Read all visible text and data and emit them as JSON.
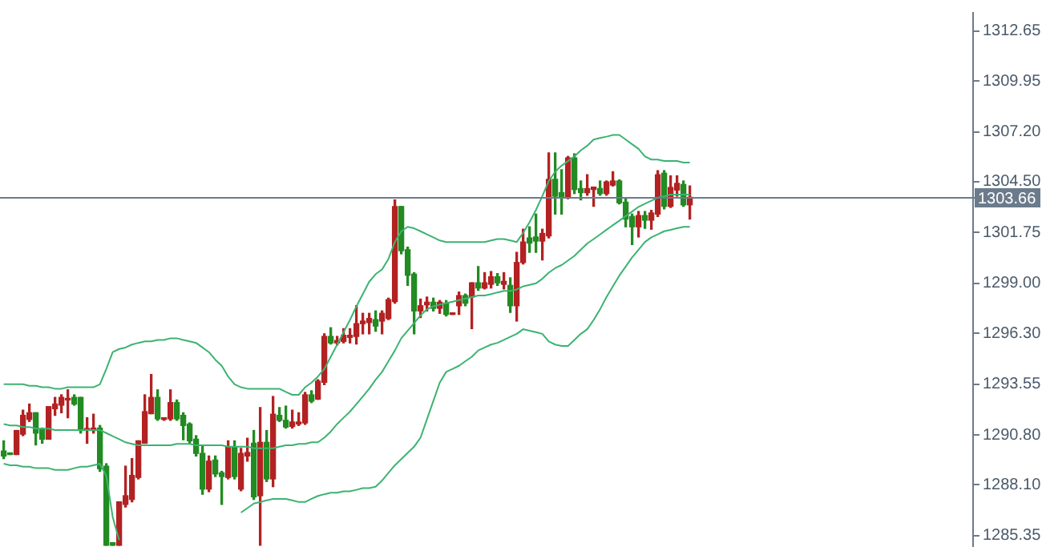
{
  "chart_data": {
    "type": "candlestick",
    "categories": [
      null,
      null,
      null,
      null,
      null,
      null,
      null,
      null,
      null,
      null,
      null,
      null,
      null,
      null,
      null,
      null,
      null,
      null,
      null,
      null,
      null,
      null,
      null,
      null,
      null,
      null,
      null,
      null,
      null,
      null,
      null,
      null,
      null,
      null,
      null,
      null,
      null,
      null,
      null,
      null,
      null,
      null,
      null,
      null,
      null,
      null,
      null,
      null,
      null,
      null,
      null,
      null,
      null,
      null,
      null,
      null,
      null,
      null,
      null,
      null,
      null,
      null,
      null,
      null,
      null,
      null,
      null,
      null,
      null,
      null,
      null,
      null,
      null,
      null,
      null,
      null,
      null,
      null,
      null,
      null,
      null,
      null,
      null,
      null,
      null,
      null,
      null,
      null,
      null,
      null,
      null,
      null,
      null,
      null,
      null,
      null,
      null,
      null,
      null,
      null,
      null,
      null,
      null,
      null,
      null,
      null,
      null,
      null
    ],
    "ohlc": [
      [
        1289.93,
        1290.48,
        1289.52,
        1289.66
      ],
      [
        1289.76,
        1289.76,
        1289.74,
        1289.74
      ],
      [
        1289.74,
        1291.04,
        1289.74,
        1291.04
      ],
      [
        1290.84,
        1292.14,
        1290.76,
        1291.86
      ],
      [
        1291.64,
        1292.47,
        1291.53,
        1292.0
      ],
      [
        1292.0,
        1292.0,
        1290.26,
        1290.9
      ],
      [
        1291.09,
        1291.17,
        1290.35,
        1290.57
      ],
      [
        1290.57,
        1292.33,
        1290.57,
        1292.33
      ],
      [
        1292.22,
        1292.83,
        1291.86,
        1292.47
      ],
      [
        1292.41,
        1292.97,
        1292.0,
        1292.83
      ],
      [
        1292.69,
        1293.24,
        1291.73,
        1292.77
      ],
      [
        1292.83,
        1292.97,
        1292.41,
        1292.47
      ],
      [
        1292.83,
        1292.83,
        1290.9,
        1291.04
      ],
      [
        1291.06,
        1291.73,
        1290.35,
        1291.12
      ],
      [
        1291.04,
        1291.92,
        1290.9,
        1291.17
      ],
      [
        1291.17,
        1291.31,
        1288.83,
        1288.97
      ],
      [
        1289.11,
        1289.24,
        1284.83,
        1284.83
      ],
      [
        1284.97,
        1284.97,
        1284.83,
        1284.83
      ],
      [
        1284.83,
        1287.18,
        1284.83,
        1287.18
      ],
      [
        1287.04,
        1289.11,
        1286.9,
        1287.51
      ],
      [
        1287.31,
        1289.52,
        1287.18,
        1288.61
      ],
      [
        1288.5,
        1290.48,
        1288.42,
        1290.48
      ],
      [
        1290.35,
        1292.97,
        1290.35,
        1292.06
      ],
      [
        1291.95,
        1294.07,
        1291.95,
        1292.83
      ],
      [
        1292.83,
        1293.24,
        1291.59,
        1291.67
      ],
      [
        1291.64,
        1291.73,
        1291.59,
        1291.73
      ],
      [
        1291.67,
        1293.24,
        1291.59,
        1292.55
      ],
      [
        1292.55,
        1292.69,
        1291.59,
        1291.67
      ],
      [
        1291.86,
        1292.0,
        1290.54,
        1291.31
      ],
      [
        1291.39,
        1291.45,
        1290.35,
        1290.48
      ],
      [
        1290.57,
        1290.76,
        1289.66,
        1289.8
      ],
      [
        1289.8,
        1290.21,
        1287.59,
        1287.87
      ],
      [
        1287.87,
        1289.66,
        1287.73,
        1289.38
      ],
      [
        1289.44,
        1289.66,
        1288.55,
        1288.69
      ],
      [
        1288.75,
        1288.83,
        1287.04,
        1288.55
      ],
      [
        1288.5,
        1290.48,
        1288.42,
        1290.15
      ],
      [
        1290.15,
        1290.48,
        1288.42,
        1288.55
      ],
      [
        1287.87,
        1290.07,
        1287.78,
        1289.8
      ],
      [
        1289.66,
        1290.62,
        1289.38,
        1289.85
      ],
      [
        1290.35,
        1291.04,
        1287.31,
        1287.45
      ],
      [
        1287.51,
        1292.28,
        1284.83,
        1290.4
      ],
      [
        1290.4,
        1291.04,
        1288.28,
        1288.42
      ],
      [
        1288.42,
        1292.88,
        1288.0,
        1291.92
      ],
      [
        1291.86,
        1292.28,
        1291.53,
        1291.59
      ],
      [
        1291.59,
        1292.36,
        1291.17,
        1291.23
      ],
      [
        1291.26,
        1292.14,
        1291.17,
        1291.5
      ],
      [
        1291.39,
        1292.0,
        1291.31,
        1291.5
      ],
      [
        1291.45,
        1293.1,
        1291.37,
        1292.97
      ],
      [
        1292.97,
        1293.19,
        1292.55,
        1292.63
      ],
      [
        1292.74,
        1293.79,
        1292.72,
        1293.71
      ],
      [
        1293.65,
        1296.27,
        1293.52,
        1296.13
      ],
      [
        1296.13,
        1296.6,
        1295.72,
        1295.78
      ],
      [
        1295.78,
        1296.13,
        1295.67,
        1295.91
      ],
      [
        1295.86,
        1296.55,
        1295.78,
        1296.19
      ],
      [
        1296.08,
        1296.55,
        1295.78,
        1296.19
      ],
      [
        1296.13,
        1297.79,
        1295.72,
        1296.82
      ],
      [
        1296.82,
        1297.38,
        1296.27,
        1296.96
      ],
      [
        1296.88,
        1297.38,
        1296.27,
        1297.1
      ],
      [
        1297.04,
        1297.51,
        1296.41,
        1296.69
      ],
      [
        1296.96,
        1297.51,
        1296.27,
        1297.38
      ],
      [
        1297.1,
        1298.2,
        1297.04,
        1298.12
      ],
      [
        1298.01,
        1303.52,
        1297.93,
        1303.16
      ],
      [
        1303.16,
        1303.16,
        1300.6,
        1300.77
      ],
      [
        1300.82,
        1300.96,
        1298.89,
        1299.44
      ],
      [
        1299.5,
        1299.58,
        1296.27,
        1297.51
      ],
      [
        1297.51,
        1298.15,
        1297.15,
        1297.79
      ],
      [
        1297.84,
        1298.26,
        1297.51,
        1297.98
      ],
      [
        1297.98,
        1298.2,
        1297.51,
        1297.65
      ],
      [
        1297.65,
        1298.07,
        1297.38,
        1297.98
      ],
      [
        1297.93,
        1298.07,
        1297.24,
        1297.32
      ],
      [
        1297.32,
        1297.38,
        1297.32,
        1297.38
      ],
      [
        1297.79,
        1298.53,
        1297.32,
        1298.34
      ],
      [
        1298.34,
        1298.42,
        1297.79,
        1297.93
      ],
      [
        1298.26,
        1299.03,
        1296.55,
        1299.03
      ],
      [
        1299.03,
        1299.91,
        1298.62,
        1298.75
      ],
      [
        1298.75,
        1299.58,
        1298.7,
        1299.03
      ],
      [
        1298.95,
        1299.64,
        1298.75,
        1299.36
      ],
      [
        1299.36,
        1299.53,
        1298.89,
        1299.03
      ],
      [
        1298.95,
        1299.58,
        1298.7,
        1299.11
      ],
      [
        1298.89,
        1299.3,
        1297.43,
        1297.79
      ],
      [
        1297.79,
        1300.68,
        1296.96,
        1300.13
      ],
      [
        1300.13,
        1301.93,
        1300.05,
        1301.24
      ],
      [
        1301.46,
        1302.06,
        1300.68,
        1301.18
      ],
      [
        1301.51,
        1302.75,
        1300.68,
        1301.29
      ],
      [
        1301.29,
        1301.93,
        1300.27,
        1301.7
      ],
      [
        1301.57,
        1306.06,
        1301.46,
        1304.63
      ],
      [
        1304.63,
        1306.06,
        1302.75,
        1303.72
      ],
      [
        1303.91,
        1305.15,
        1302.75,
        1303.66
      ],
      [
        1303.63,
        1305.87,
        1303.58,
        1305.79
      ],
      [
        1305.79,
        1306.01,
        1303.86,
        1304.08
      ],
      [
        1304.13,
        1304.54,
        1303.52,
        1303.91
      ],
      [
        1303.91,
        1304.88,
        1303.77,
        1304.13
      ],
      [
        1304.08,
        1304.21,
        1303.17,
        1304.21
      ],
      [
        1304.13,
        1304.54,
        1303.77,
        1303.86
      ],
      [
        1303.86,
        1304.54,
        1303.77,
        1304.49
      ],
      [
        1304.32,
        1305.04,
        1304.27,
        1304.54
      ],
      [
        1304.54,
        1304.6,
        1303.3,
        1303.36
      ],
      [
        1303.39,
        1303.58,
        1302.06,
        1302.48
      ],
      [
        1302.62,
        1302.75,
        1301.1,
        1302.06
      ],
      [
        1302.06,
        1302.89,
        1301.51,
        1302.67
      ],
      [
        1302.67,
        1302.89,
        1301.98,
        1302.42
      ],
      [
        1302.42,
        1302.95,
        1301.93,
        1302.81
      ],
      [
        1302.75,
        1305.1,
        1302.62,
        1304.88
      ],
      [
        1304.96,
        1305.1,
        1303.03,
        1303.17
      ],
      [
        1303.17,
        1304.82,
        1303.11,
        1304.19
      ],
      [
        1304.05,
        1304.82,
        1303.72,
        1304.41
      ],
      [
        1304.35,
        1304.54,
        1303.17,
        1303.25
      ],
      [
        1303.25,
        1304.27,
        1302.48,
        1303.66
      ]
    ],
    "colors": [
      "#228b22",
      "#228b22",
      "#b22222",
      "#b22222",
      "#b22222",
      "#228b22",
      "#228b22",
      "#b22222",
      "#b22222",
      "#b22222",
      "#b22222",
      "#228b22",
      "#228b22",
      "#b22222",
      "#b22222",
      "#228b22",
      "#228b22",
      "#228b22",
      "#b22222",
      "#b22222",
      "#b22222",
      "#b22222",
      "#b22222",
      "#b22222",
      "#228b22",
      "#b22222",
      "#b22222",
      "#228b22",
      "#228b22",
      "#228b22",
      "#228b22",
      "#228b22",
      "#b22222",
      "#228b22",
      "#228b22",
      "#b22222",
      "#228b22",
      "#b22222",
      "#b22222",
      "#228b22",
      "#b22222",
      "#228b22",
      "#b22222",
      "#228b22",
      "#228b22",
      "#b22222",
      "#b22222",
      "#b22222",
      "#228b22",
      "#b22222",
      "#b22222",
      "#228b22",
      "#b22222",
      "#b22222",
      "#b22222",
      "#b22222",
      "#b22222",
      "#b22222",
      "#228b22",
      "#b22222",
      "#b22222",
      "#b22222",
      "#228b22",
      "#228b22",
      "#228b22",
      "#b22222",
      "#b22222",
      "#228b22",
      "#b22222",
      "#228b22",
      "#b22222",
      "#b22222",
      "#228b22",
      "#b22222",
      "#228b22",
      "#b22222",
      "#b22222",
      "#228b22",
      "#b22222",
      "#228b22",
      "#b22222",
      "#b22222",
      "#228b22",
      "#228b22",
      "#b22222",
      "#b22222",
      "#228b22",
      "#228b22",
      "#b22222",
      "#228b22",
      "#228b22",
      "#b22222",
      "#b22222",
      "#228b22",
      "#b22222",
      "#b22222",
      "#228b22",
      "#228b22",
      "#228b22",
      "#b22222",
      "#228b22",
      "#b22222",
      "#b22222",
      "#228b22",
      "#b22222",
      "#b22222",
      "#228b22",
      "#b22222"
    ],
    "series": [
      {
        "type": "line",
        "color": "#3cb371",
        "values": [
          1293.54,
          1293.54,
          1293.54,
          1293.54,
          1293.46,
          1293.46,
          1293.38,
          1293.38,
          1293.3,
          1293.3,
          1293.38,
          1293.38,
          1293.38,
          1293.38,
          1293.38,
          1293.54,
          1294.37,
          1295.28,
          1295.45,
          1295.53,
          1295.69,
          1295.78,
          1295.86,
          1295.86,
          1295.94,
          1295.94,
          1296.03,
          1296.03,
          1295.94,
          1295.86,
          1295.78,
          1295.53,
          1295.28,
          1294.87,
          1294.54,
          1293.96,
          1293.54,
          1293.38,
          1293.3,
          1293.3,
          1293.3,
          1293.3,
          1293.3,
          1293.3,
          1293.13,
          1292.97,
          1292.97,
          1293.38,
          1293.63,
          1293.96,
          1294.37,
          1295.03,
          1295.69,
          1296.36,
          1297.02,
          1297.76,
          1298.42,
          1299.09,
          1299.5,
          1299.75,
          1300.33,
          1301.24,
          1301.82,
          1302.06,
          1301.98,
          1301.82,
          1301.65,
          1301.49,
          1301.32,
          1301.24,
          1301.24,
          1301.24,
          1301.24,
          1301.24,
          1301.24,
          1301.24,
          1301.32,
          1301.4,
          1301.4,
          1301.32,
          1301.24,
          1301.73,
          1302.31,
          1302.97,
          1303.72,
          1304.54,
          1305.04,
          1305.37,
          1305.62,
          1305.87,
          1306.2,
          1306.45,
          1306.78,
          1306.87,
          1306.94,
          1307.03,
          1307.03,
          1306.78,
          1306.53,
          1306.28,
          1305.87,
          1305.7,
          1305.7,
          1305.62,
          1305.62,
          1305.62,
          1305.54,
          1305.54
        ]
      },
      {
        "type": "line",
        "color": "#3cb371",
        "values": [
          1291.39,
          1291.31,
          1291.31,
          1291.23,
          1291.23,
          1291.14,
          1291.14,
          1291.14,
          1291.06,
          1291.06,
          1291.06,
          1291.06,
          1291.06,
          1291.06,
          1291.06,
          1291.06,
          1290.9,
          1290.73,
          1290.57,
          1290.4,
          1290.32,
          1290.24,
          1290.24,
          1290.24,
          1290.24,
          1290.24,
          1290.24,
          1290.32,
          1290.32,
          1290.32,
          1290.24,
          1290.24,
          1290.24,
          1290.24,
          1290.24,
          1290.16,
          1290.16,
          1290.16,
          1290.16,
          1290.08,
          1290.08,
          1290.08,
          1290.08,
          1290.16,
          1290.24,
          1290.24,
          1290.32,
          1290.32,
          1290.4,
          1290.4,
          1290.65,
          1290.98,
          1291.39,
          1291.73,
          1292.06,
          1292.47,
          1292.88,
          1293.3,
          1293.79,
          1294.21,
          1294.79,
          1295.37,
          1296.03,
          1296.44,
          1296.85,
          1297.27,
          1297.6,
          1297.76,
          1297.85,
          1297.93,
          1298.01,
          1298.09,
          1298.18,
          1298.26,
          1298.34,
          1298.34,
          1298.42,
          1298.51,
          1298.59,
          1298.59,
          1298.67,
          1298.84,
          1298.92,
          1299.0,
          1299.25,
          1299.58,
          1299.83,
          1299.99,
          1300.24,
          1300.49,
          1300.82,
          1301.16,
          1301.4,
          1301.65,
          1301.9,
          1302.15,
          1302.39,
          1302.64,
          1302.89,
          1303.14,
          1303.31,
          1303.47,
          1303.64,
          1303.72,
          1303.8,
          1303.8,
          1303.8,
          1303.8
        ]
      },
      {
        "type": "line",
        "color": "#3cb371",
        "values": [
          1289.24,
          1289.16,
          1289.16,
          1289.08,
          1289.08,
          1289.0,
          1289.0,
          1289.0,
          1288.91,
          1288.91,
          1288.91,
          1289.0,
          1289.08,
          1289.08,
          1289.16,
          1289.24,
          1288.58,
          1286.35,
          1285.11,
          null,
          null,
          null,
          null,
          null,
          null,
          null,
          null,
          null,
          null,
          null,
          null,
          null,
          null,
          null,
          null,
          null,
          null,
          1286.6,
          1286.84,
          1287.09,
          1287.17,
          1287.26,
          1287.34,
          1287.34,
          1287.34,
          1287.26,
          1287.17,
          1287.17,
          1287.34,
          1287.5,
          1287.59,
          1287.67,
          1287.67,
          1287.75,
          1287.75,
          1287.83,
          1287.92,
          1287.92,
          1288.0,
          1288.33,
          1288.75,
          1289.16,
          1289.49,
          1289.83,
          1290.16,
          1290.65,
          1291.64,
          1292.64,
          1293.63,
          1294.21,
          1294.37,
          1294.54,
          1294.79,
          1295.03,
          1295.37,
          1295.53,
          1295.69,
          1295.78,
          1295.94,
          1296.11,
          1296.27,
          1296.52,
          1296.44,
          1296.36,
          1296.27,
          1295.86,
          1295.69,
          1295.61,
          1295.61,
          1295.94,
          1296.27,
          1296.52,
          1297.02,
          1297.6,
          1298.26,
          1298.84,
          1299.42,
          1299.91,
          1300.41,
          1300.82,
          1301.24,
          1301.49,
          1301.65,
          1301.82,
          1301.9,
          1301.98,
          1302.06,
          1302.06
        ]
      }
    ],
    "ylim": [
      1284.78,
      1313.64
    ],
    "yticks": [
      {
        "value": 1285.35,
        "label": "1285.35"
      },
      {
        "value": 1288.1,
        "label": "1288.10"
      },
      {
        "value": 1290.8,
        "label": "1290.80"
      },
      {
        "value": 1293.55,
        "label": "1293.55"
      },
      {
        "value": 1296.3,
        "label": "1296.30"
      },
      {
        "value": 1299.0,
        "label": "1299.00"
      },
      {
        "value": 1301.75,
        "label": "1301.75"
      },
      {
        "value": 1304.5,
        "label": "1304.50"
      },
      {
        "value": 1307.2,
        "label": "1307.20"
      },
      {
        "value": 1309.95,
        "label": "1309.95"
      },
      {
        "value": 1312.65,
        "label": "1312.65"
      }
    ],
    "ref_lines": [
      {
        "axis": "y",
        "value": 1303.66,
        "label": "1303.66",
        "color": "#6b7b8c"
      }
    ]
  }
}
